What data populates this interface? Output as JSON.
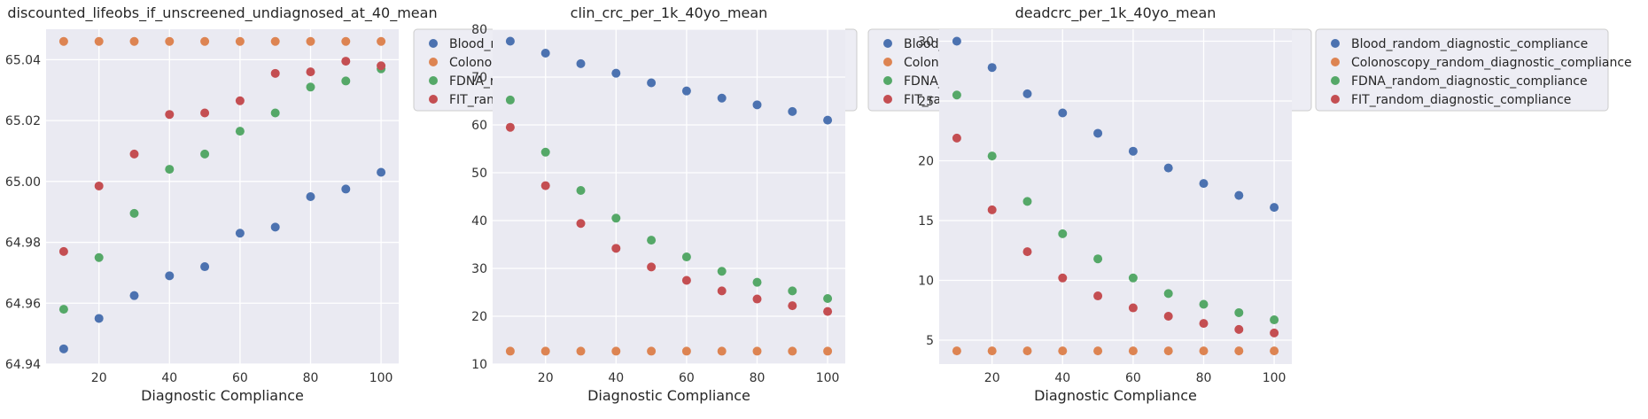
{
  "chart_data": [
    {
      "type": "scatter",
      "title": "discounted_lifeobs_if_unscreened_undiagnosed_at_40_mean",
      "xlabel": "Diagnostic Compliance",
      "ylabel": "",
      "xlim": [
        5,
        105
      ],
      "ylim": [
        64.94,
        65.05
      ],
      "xticks": [
        20,
        40,
        60,
        80,
        100
      ],
      "yticks": [
        64.94,
        64.96,
        64.98,
        65.0,
        65.02,
        65.04
      ],
      "ytick_labels": [
        "64.94",
        "64.96",
        "64.98",
        "65.00",
        "65.02",
        "65.04"
      ],
      "legend_position": "outside-right",
      "x": [
        10,
        20,
        30,
        40,
        50,
        60,
        70,
        80,
        90,
        100
      ],
      "series": [
        {
          "name": "Blood_random_diagnostic_compliance",
          "color": "#4c72b0",
          "values": [
            64.945,
            64.955,
            64.9625,
            64.969,
            64.972,
            64.983,
            64.985,
            64.995,
            64.9975,
            65.003
          ]
        },
        {
          "name": "Colonoscopy_random_diagnostic_compliance",
          "color": "#dd8452",
          "values": [
            65.046,
            65.046,
            65.046,
            65.046,
            65.046,
            65.046,
            65.046,
            65.046,
            65.046,
            65.046
          ]
        },
        {
          "name": "FDNA_random_diagnostic_compliance",
          "color": "#55a868",
          "values": [
            64.958,
            64.975,
            64.9895,
            65.004,
            65.009,
            65.0165,
            65.0225,
            65.031,
            65.033,
            65.037
          ]
        },
        {
          "name": "FIT_random_diagnostic_compliance",
          "color": "#c44e52",
          "values": [
            64.977,
            64.9985,
            65.009,
            65.022,
            65.0225,
            65.0265,
            65.0355,
            65.036,
            65.0395,
            65.038
          ]
        }
      ]
    },
    {
      "type": "scatter",
      "title": "clin_crc_per_1k_40yo_mean",
      "xlabel": "Diagnostic Compliance",
      "ylabel": "",
      "xlim": [
        5,
        105
      ],
      "ylim": [
        10,
        80
      ],
      "xticks": [
        20,
        40,
        60,
        80,
        100
      ],
      "yticks": [
        10,
        20,
        30,
        40,
        50,
        60,
        70,
        80
      ],
      "ytick_labels": [
        "10",
        "20",
        "30",
        "40",
        "50",
        "60",
        "70",
        "80"
      ],
      "legend_position": "upper-right-outside",
      "x": [
        10,
        20,
        30,
        40,
        50,
        60,
        70,
        80,
        90,
        100
      ],
      "series": [
        {
          "name": "Blood_random_diagnostic_compliance",
          "color": "#4c72b0",
          "values": [
            77.5,
            75.0,
            72.8,
            70.8,
            68.8,
            67.1,
            65.6,
            64.2,
            62.8,
            61.0
          ]
        },
        {
          "name": "Colonoscopy_random_diagnostic_compliance",
          "color": "#dd8452",
          "values": [
            12.7,
            12.7,
            12.7,
            12.7,
            12.7,
            12.7,
            12.7,
            12.7,
            12.7,
            12.7
          ]
        },
        {
          "name": "FDNA_random_diagnostic_compliance",
          "color": "#55a868",
          "values": [
            65.2,
            54.3,
            46.3,
            40.5,
            35.9,
            32.4,
            29.4,
            27.1,
            25.3,
            23.7
          ]
        },
        {
          "name": "FIT_random_diagnostic_compliance",
          "color": "#c44e52",
          "values": [
            59.5,
            47.3,
            39.4,
            34.2,
            30.3,
            27.5,
            25.3,
            23.6,
            22.2,
            21.0
          ]
        }
      ]
    },
    {
      "type": "scatter",
      "title": "deadcrc_per_1k_40yo_mean",
      "xlabel": "Diagnostic Compliance",
      "ylabel": "",
      "xlim": [
        5,
        105
      ],
      "ylim": [
        3,
        31
      ],
      "xticks": [
        20,
        40,
        60,
        80,
        100
      ],
      "yticks": [
        5,
        10,
        15,
        20,
        25,
        30
      ],
      "ytick_labels": [
        "5",
        "10",
        "15",
        "20",
        "25",
        "30"
      ],
      "legend_position": "outside-right",
      "x": [
        10,
        20,
        30,
        40,
        50,
        60,
        70,
        80,
        90,
        100
      ],
      "series": [
        {
          "name": "Blood_random_diagnostic_compliance",
          "color": "#4c72b0",
          "values": [
            30.0,
            27.8,
            25.6,
            24.0,
            22.3,
            20.8,
            19.4,
            18.1,
            17.1,
            16.1
          ]
        },
        {
          "name": "Colonoscopy_random_diagnostic_compliance",
          "color": "#dd8452",
          "values": [
            4.1,
            4.1,
            4.1,
            4.1,
            4.1,
            4.1,
            4.1,
            4.1,
            4.1,
            4.1
          ]
        },
        {
          "name": "FDNA_random_diagnostic_compliance",
          "color": "#55a868",
          "values": [
            25.5,
            20.4,
            16.6,
            13.9,
            11.8,
            10.2,
            8.9,
            8.0,
            7.3,
            6.7
          ]
        },
        {
          "name": "FIT_random_diagnostic_compliance",
          "color": "#c44e52",
          "values": [
            21.9,
            15.9,
            12.4,
            10.2,
            8.7,
            7.7,
            7.0,
            6.4,
            5.9,
            5.6
          ]
        }
      ]
    }
  ]
}
